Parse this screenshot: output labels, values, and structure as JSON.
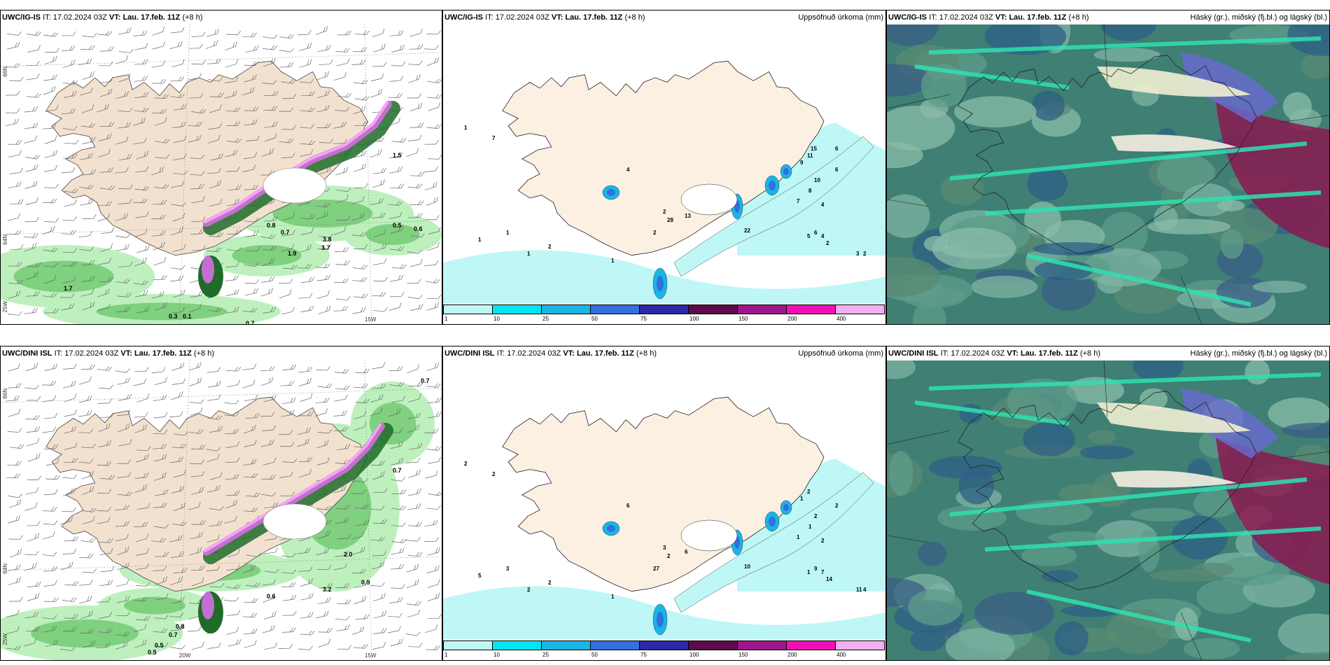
{
  "panels": [
    {
      "model": "UWC/IG-IS",
      "it_label": "IT:",
      "it_time": "17.02.2024 03Z",
      "vt_label": "VT:",
      "vt_time": "Lau. 17.feb. 11Z",
      "lead": "(+8 h)",
      "right": ""
    },
    {
      "model": "UWC/IG-IS",
      "it_label": "IT:",
      "it_time": "17.02.2024 03Z",
      "vt_label": "VT:",
      "vt_time": "Lau. 17.feb. 11Z",
      "lead": "(+8 h)",
      "right": "Uppsöfnuð úrkoma (mm)"
    },
    {
      "model": "UWC/IG-IS",
      "it_label": "IT:",
      "it_time": "17.02.2024 03Z",
      "vt_label": "VT:",
      "vt_time": "Lau. 17.feb. 11Z",
      "lead": "(+8 h)",
      "right": "Háský (gr.), miðský (fj.bl.) og lágský (bl.)"
    },
    {
      "model": "UWC/DINI ISL",
      "it_label": "IT:",
      "it_time": "17.02.2024 03Z",
      "vt_label": "VT:",
      "vt_time": "Lau. 17.feb. 11Z",
      "lead": "(+8 h)",
      "right": ""
    },
    {
      "model": "UWC/DINI ISL",
      "it_label": "IT:",
      "it_time": "17.02.2024 03Z",
      "vt_label": "VT:",
      "vt_time": "Lau. 17.feb. 11Z",
      "lead": "(+8 h)",
      "right": "Uppsöfnuð úrkoma (mm)"
    },
    {
      "model": "UWC/DINI ISL",
      "it_label": "IT:",
      "it_time": "17.02.2024 03Z",
      "vt_label": "VT:",
      "vt_time": "Lau. 17.feb. 11Z",
      "lead": "(+8 h)",
      "right": "Háský (gr.), miðský (fj.bl.) og lágský (bl.)"
    }
  ],
  "axis_labels": {
    "lat66": "66N",
    "lat64": "64N",
    "lon25": "25W",
    "lon20": "20W",
    "lon15": "15W"
  },
  "colorbar": {
    "ticks": [
      "1",
      "10",
      "25",
      "50",
      "75",
      "100",
      "150",
      "200",
      "400"
    ],
    "colors": [
      "#bff7f7",
      "#00e5ee",
      "#19b5e6",
      "#3070e0",
      "#2a2aa8",
      "#5e0a4a",
      "#a0148c",
      "#f010b4",
      "#f3b0f3"
    ]
  },
  "precip_labels_top": [
    "1",
    "7",
    "4",
    "2",
    "13",
    "28",
    "2",
    "22",
    "6",
    "5",
    "4",
    "4",
    "2",
    "3",
    "2",
    "1",
    "1",
    "2",
    "1",
    "1",
    "6",
    "10",
    "8",
    "7",
    "9",
    "11",
    "15",
    "6"
  ],
  "precip_labels_bottom": [
    "2",
    "2",
    "6",
    "3",
    "6",
    "2",
    "27",
    "10",
    "9",
    "1",
    "2",
    "7",
    "14",
    "11",
    "4",
    "5",
    "3",
    "2",
    "2",
    "1",
    "2",
    "2",
    "1",
    "1",
    "1",
    "2"
  ],
  "snow_labels_top": [
    "0.5",
    "0.6",
    "0.7",
    "3.8",
    "3.7",
    "1.9",
    "1.7",
    "0.3",
    "0.1",
    "0.8",
    "0.7",
    "1.5"
  ],
  "snow_labels_bottom": [
    "0.7",
    "0.7",
    "0.9",
    "3.2",
    "2.0",
    "0.6",
    "0.5",
    "0.7",
    "0.8",
    "0.5"
  ]
}
